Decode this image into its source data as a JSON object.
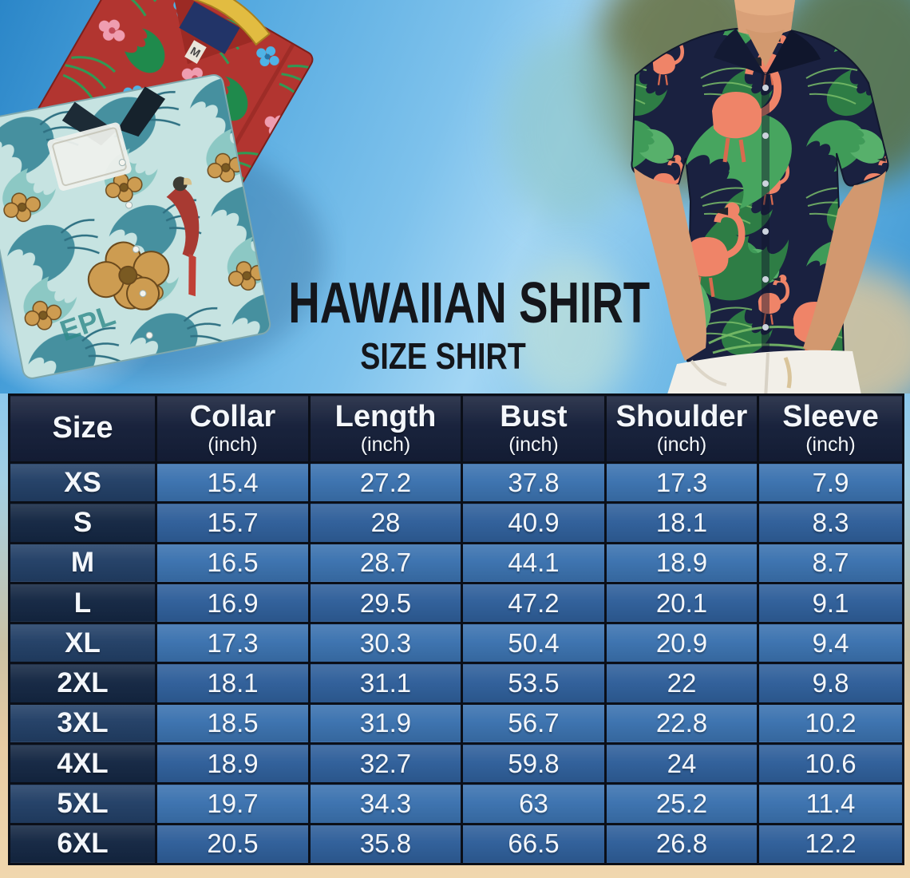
{
  "hero": {
    "title": "HAWAIIAN SHIRT",
    "subtitle": "SIZE SHIRT",
    "photos": {
      "folded_shirts_print_text": "EPL",
      "folded_shirts_label_size": "M"
    }
  },
  "chart_data": {
    "type": "table",
    "title": "HAWAIIAN SHIRT SIZE SHIRT",
    "columns": [
      {
        "label": "Size",
        "unit": ""
      },
      {
        "label": "Collar",
        "unit": "(inch)"
      },
      {
        "label": "Length",
        "unit": "(inch)"
      },
      {
        "label": "Bust",
        "unit": "(inch)"
      },
      {
        "label": "Shoulder",
        "unit": "(inch)"
      },
      {
        "label": "Sleeve",
        "unit": "(inch)"
      }
    ],
    "rows": [
      {
        "size": "XS",
        "values": [
          "15.4",
          "27.2",
          "37.8",
          "17.3",
          "7.9"
        ]
      },
      {
        "size": "S",
        "values": [
          "15.7",
          "28",
          "40.9",
          "18.1",
          "8.3"
        ]
      },
      {
        "size": "M",
        "values": [
          "16.5",
          "28.7",
          "44.1",
          "18.9",
          "8.7"
        ]
      },
      {
        "size": "L",
        "values": [
          "16.9",
          "29.5",
          "47.2",
          "20.1",
          "9.1"
        ]
      },
      {
        "size": "XL",
        "values": [
          "17.3",
          "30.3",
          "50.4",
          "20.9",
          "9.4"
        ]
      },
      {
        "size": "2XL",
        "values": [
          "18.1",
          "31.1",
          "53.5",
          "22",
          "9.8"
        ]
      },
      {
        "size": "3XL",
        "values": [
          "18.5",
          "31.9",
          "56.7",
          "22.8",
          "10.2"
        ]
      },
      {
        "size": "4XL",
        "values": [
          "18.9",
          "32.7",
          "59.8",
          "24",
          "10.6"
        ]
      },
      {
        "size": "5XL",
        "values": [
          "19.7",
          "34.3",
          "63",
          "25.2",
          "11.4"
        ]
      },
      {
        "size": "6XL",
        "values": [
          "20.5",
          "35.8",
          "66.5",
          "26.8",
          "12.2"
        ]
      }
    ]
  },
  "colors": {
    "header_bg": "#151f39",
    "row_odd_size_bg": "#223f66",
    "row_odd_value_bg": "#3b72af",
    "row_even_size_bg": "#142743",
    "row_even_value_bg": "#2f5f9a",
    "table_border": "#0b0f18",
    "table_text": "#f4f7fb",
    "title_color": "#14161b",
    "sky_blue": "#7ec2ec",
    "sand": "#ecd0a6",
    "shirt_navy": "#1a2140",
    "leaf_green": "#3f9b58",
    "flamingo_coral": "#ef8468"
  }
}
